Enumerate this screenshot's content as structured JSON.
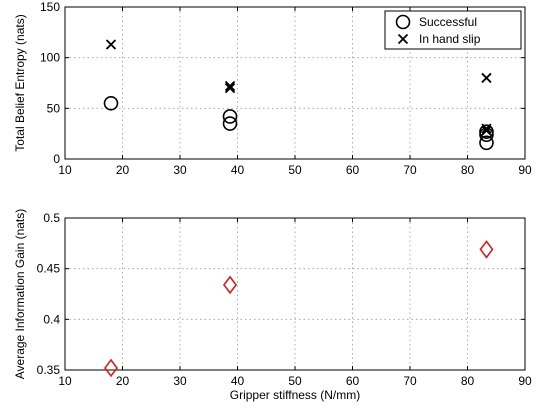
{
  "chart_data": [
    {
      "type": "scatter",
      "title": "",
      "xlabel": "",
      "ylabel": "Total Belief Entropy (nats)",
      "xlim": [
        10,
        90
      ],
      "ylim": [
        0,
        150
      ],
      "xticks": [
        10,
        20,
        30,
        40,
        50,
        60,
        70,
        80,
        90
      ],
      "yticks": [
        0,
        50,
        100,
        150
      ],
      "grid": true,
      "legend": "top-right",
      "series": [
        {
          "name": "Successful",
          "marker": "circle",
          "color": "#000000",
          "points": [
            {
              "x": 18,
              "y": 55
            },
            {
              "x": 38.7,
              "y": 42
            },
            {
              "x": 38.7,
              "y": 35
            },
            {
              "x": 83.3,
              "y": 27
            },
            {
              "x": 83.3,
              "y": 24
            },
            {
              "x": 83.3,
              "y": 16
            }
          ]
        },
        {
          "name": "In hand slip",
          "marker": "x",
          "color": "#000000",
          "points": [
            {
              "x": 18,
              "y": 113
            },
            {
              "x": 38.7,
              "y": 72
            },
            {
              "x": 38.7,
              "y": 70
            },
            {
              "x": 83.3,
              "y": 80
            },
            {
              "x": 83.3,
              "y": 30
            },
            {
              "x": 83.3,
              "y": 28
            }
          ]
        }
      ]
    },
    {
      "type": "scatter",
      "title": "",
      "xlabel": "Gripper stiffness (N/mm)",
      "ylabel": "Average Information Gain (nats)",
      "xlim": [
        10,
        90
      ],
      "ylim": [
        0.35,
        0.5
      ],
      "xticks": [
        10,
        20,
        30,
        40,
        50,
        60,
        70,
        80,
        90
      ],
      "yticks": [
        0.35,
        0.4,
        0.45,
        0.5
      ],
      "grid": true,
      "series": [
        {
          "marker": "diamond",
          "color": "#d42020",
          "points": [
            {
              "x": 18,
              "y": 0.352
            },
            {
              "x": 38.7,
              "y": 0.434
            },
            {
              "x": 83.3,
              "y": 0.469
            }
          ]
        }
      ]
    }
  ]
}
